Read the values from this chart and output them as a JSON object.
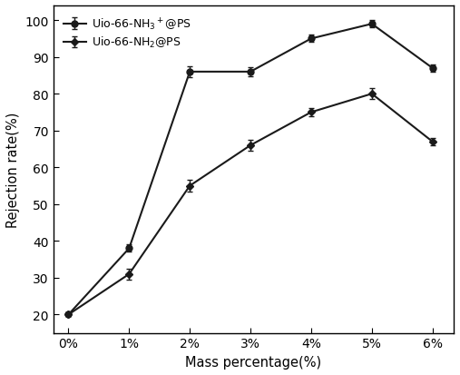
{
  "x_labels": [
    "0%",
    "1%",
    "2%",
    "3%",
    "4%",
    "5%",
    "6%"
  ],
  "x_values": [
    0,
    1,
    2,
    3,
    4,
    5,
    6
  ],
  "series1": {
    "label": "Uio-66-NH$_3$$^+$@PS",
    "y": [
      20,
      38,
      86,
      86,
      95,
      99,
      87
    ],
    "yerr": [
      0.5,
      1.0,
      1.5,
      1.2,
      1.0,
      1.0,
      1.0
    ],
    "color": "#1a1a1a",
    "marker": "o",
    "markersize": 5
  },
  "series2": {
    "label": "Uio-66-NH$_2$@PS",
    "y": [
      20,
      31,
      55,
      66,
      75,
      80,
      67
    ],
    "yerr": [
      0.5,
      1.5,
      1.5,
      1.5,
      1.2,
      1.5,
      1.0
    ],
    "color": "#1a1a1a",
    "marker": "D",
    "markersize": 4
  },
  "xlabel": "Mass percentage(%)",
  "ylabel": "Rejection rate(%)",
  "ylim": [
    15,
    104
  ],
  "yticks": [
    20,
    30,
    40,
    50,
    60,
    70,
    80,
    90,
    100
  ],
  "xlim": [
    -0.25,
    6.35
  ],
  "legend_loc": "upper left",
  "background_color": "#ffffff",
  "linewidth": 1.5,
  "capsize": 2
}
